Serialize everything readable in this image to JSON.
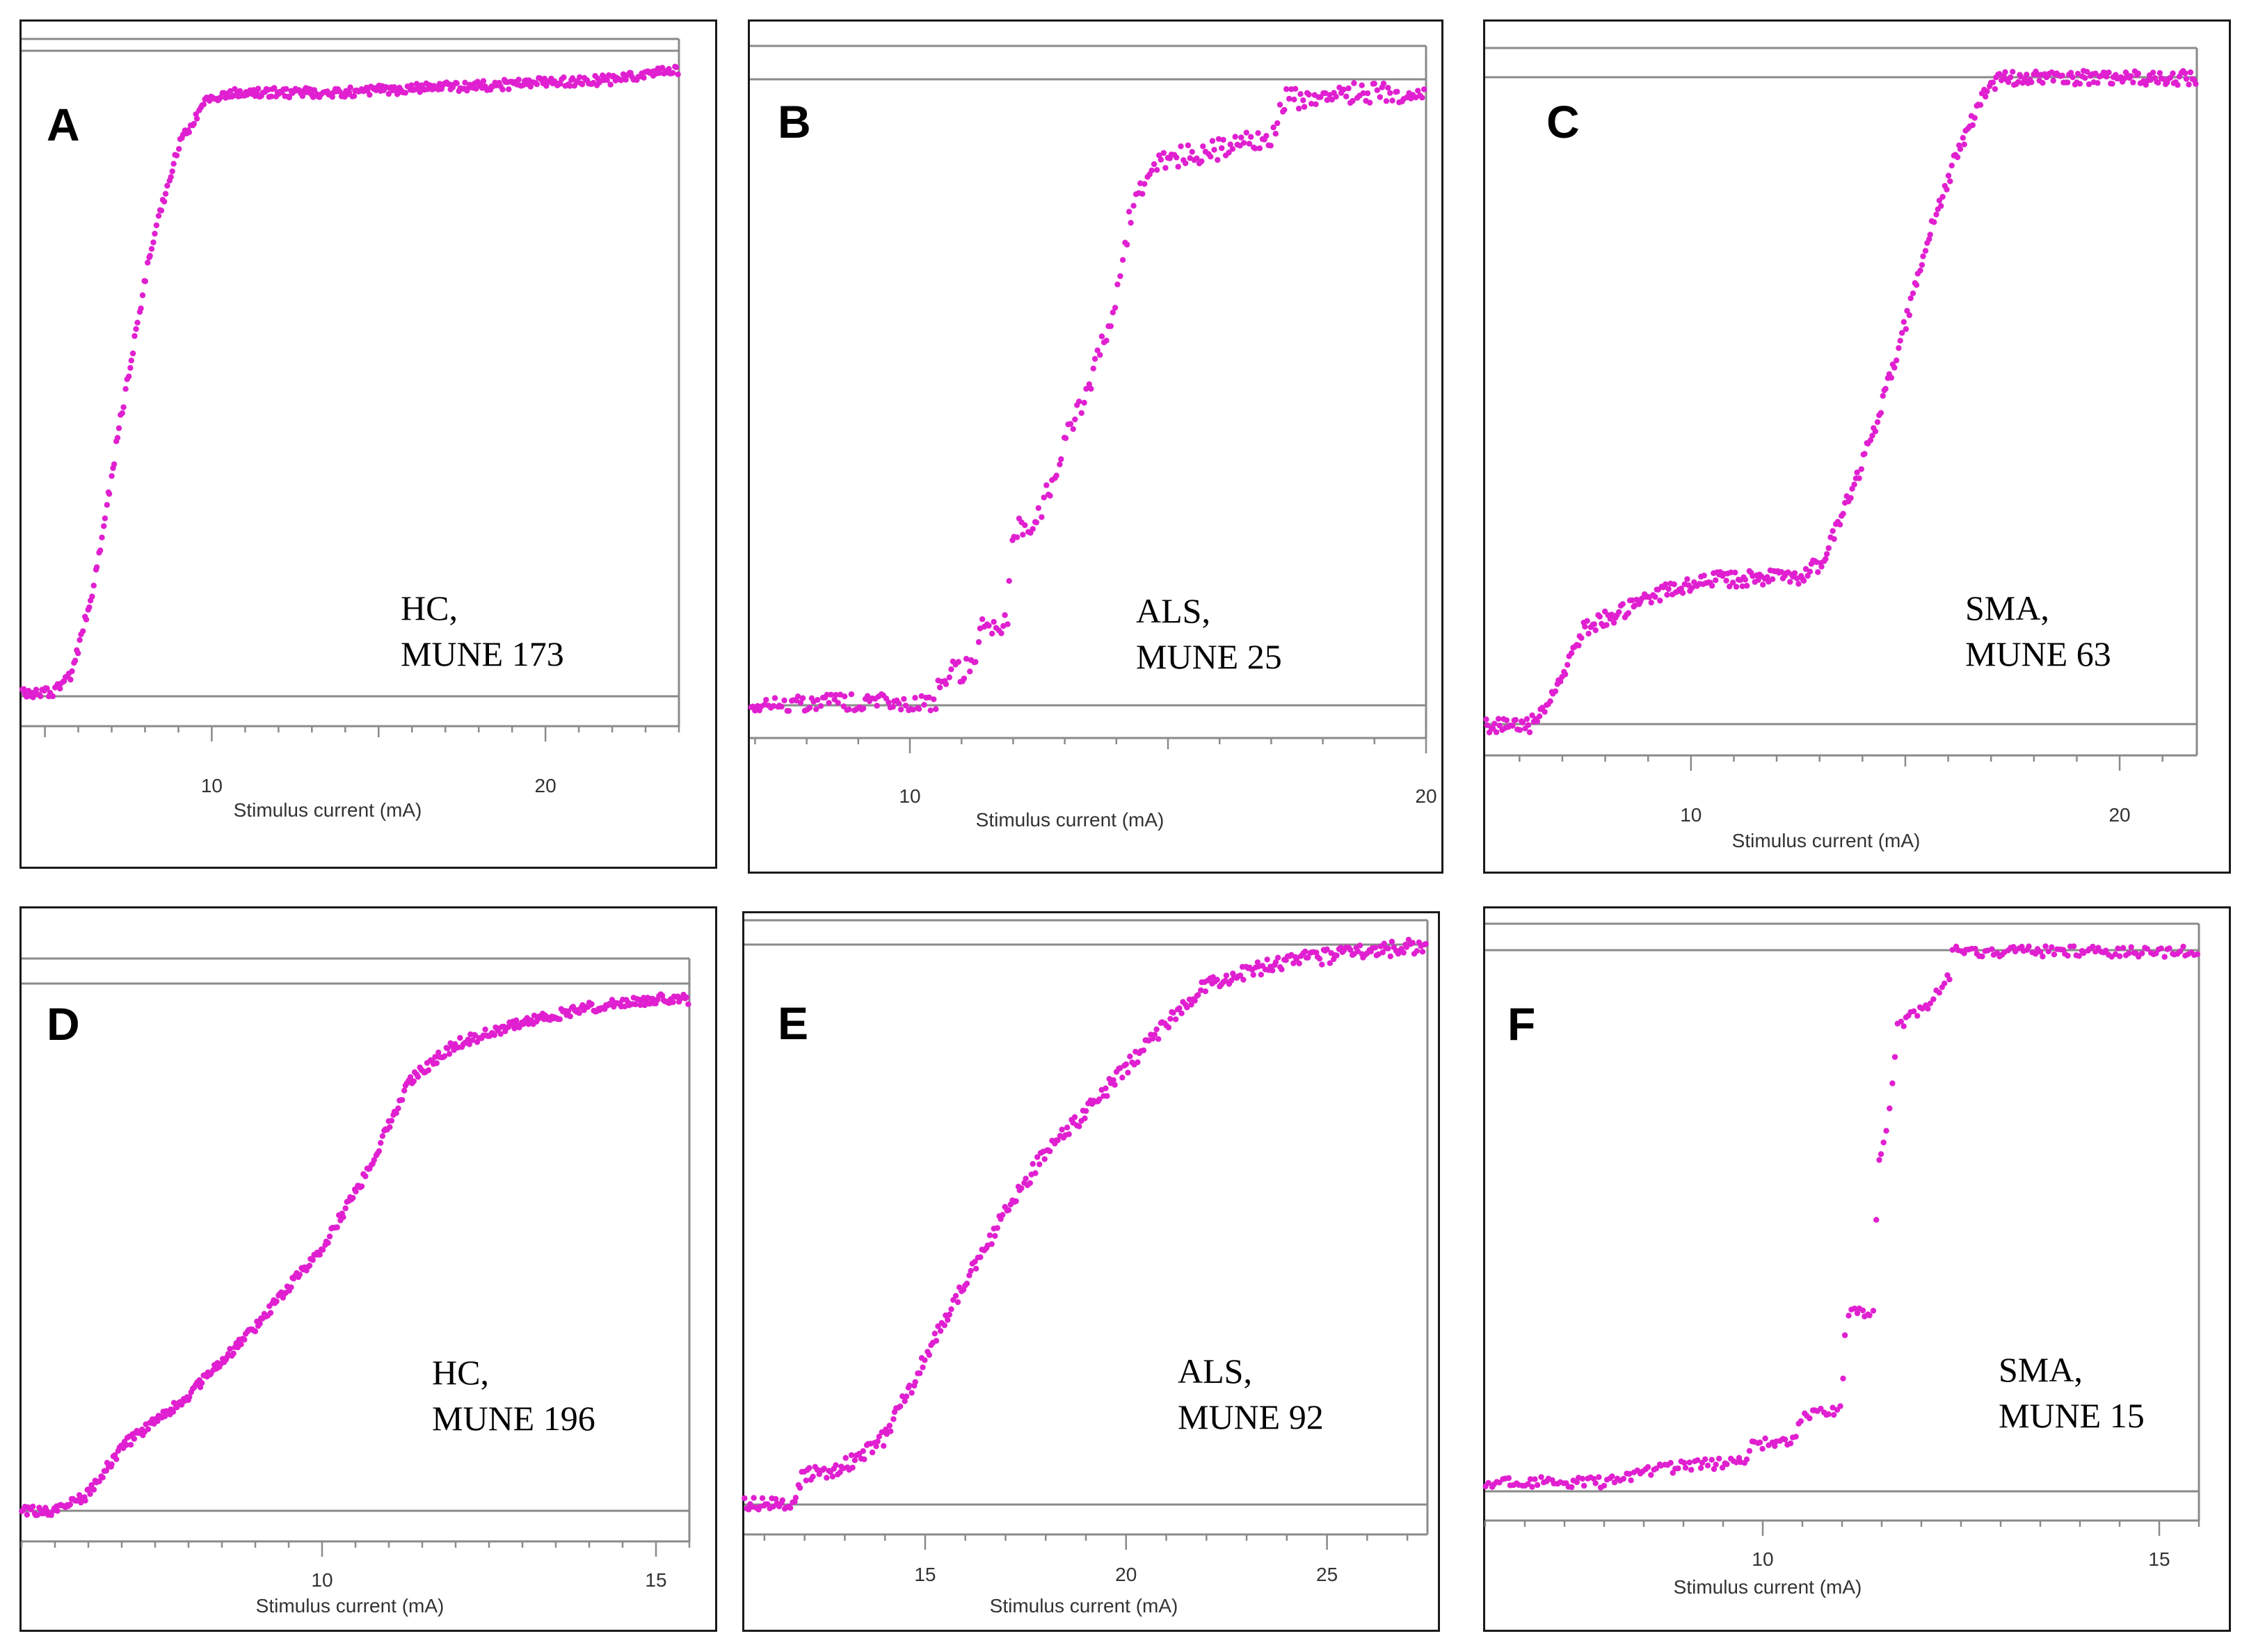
{
  "colors": {
    "marker": "#e020d0",
    "frame": "#8a8a8a",
    "border": "#1a1a1a"
  },
  "chart_data": [
    {
      "panel": "A",
      "type": "scatter",
      "xlabel": "Stimulus current (mA)",
      "annotation": [
        "HC,",
        "MUNE 173"
      ],
      "xlim": [
        4.3,
        24
      ],
      "ticks": [
        10,
        20
      ],
      "minor_step": 1,
      "profile": [
        [
          4.3,
          0
        ],
        [
          5.2,
          0.0
        ],
        [
          5.8,
          0.03
        ],
        [
          6.5,
          0.18
        ],
        [
          7.3,
          0.45
        ],
        [
          8.2,
          0.72
        ],
        [
          9.0,
          0.88
        ],
        [
          9.8,
          0.95
        ],
        [
          10.5,
          0.963
        ],
        [
          14,
          0.965
        ],
        [
          18,
          0.975
        ],
        [
          22,
          0.985
        ],
        [
          24,
          1.0
        ]
      ],
      "noise": 0.008,
      "n_points": 420
    },
    {
      "panel": "B",
      "type": "scatter",
      "xlabel": "Stimulus current (mA)",
      "annotation": [
        "ALS,",
        "MUNE 25"
      ],
      "xlim": [
        6.9,
        20
      ],
      "ticks": [
        10,
        20
      ],
      "minor_step": 1,
      "profile": [
        [
          6.9,
          0
        ],
        [
          10.5,
          0
        ],
        [
          10.6,
          0.05
        ],
        [
          11.3,
          0.06
        ],
        [
          11.35,
          0.12
        ],
        [
          11.9,
          0.13
        ],
        [
          11.95,
          0.28
        ],
        [
          12.5,
          0.3
        ],
        [
          13.0,
          0.42
        ],
        [
          13.5,
          0.52
        ],
        [
          14.0,
          0.65
        ],
        [
          14.3,
          0.8
        ],
        [
          14.8,
          0.87
        ],
        [
          16.0,
          0.89
        ],
        [
          16.3,
          0.9
        ],
        [
          17.0,
          0.91
        ],
        [
          17.3,
          0.97
        ],
        [
          18.5,
          0.98
        ],
        [
          20,
          0.98
        ]
      ],
      "noise": 0.018,
      "n_points": 300
    },
    {
      "panel": "C",
      "type": "scatter",
      "xlabel": "Stimulus current (mA)",
      "annotation": [
        "SMA,",
        "MUNE 63"
      ],
      "xlim": [
        5.2,
        21.8
      ],
      "ticks": [
        10,
        20
      ],
      "minor_step": 1,
      "profile": [
        [
          5.2,
          0
        ],
        [
          6.2,
          0.0
        ],
        [
          6.6,
          0.02
        ],
        [
          7.0,
          0.08
        ],
        [
          7.5,
          0.15
        ],
        [
          8.5,
          0.18
        ],
        [
          9.5,
          0.21
        ],
        [
          10.5,
          0.225
        ],
        [
          12.5,
          0.23
        ],
        [
          13.0,
          0.25
        ],
        [
          13.5,
          0.32
        ],
        [
          14.3,
          0.46
        ],
        [
          15.0,
          0.62
        ],
        [
          15.6,
          0.77
        ],
        [
          16.2,
          0.88
        ],
        [
          16.8,
          0.97
        ],
        [
          17.2,
          1.0
        ],
        [
          21.8,
          1.0
        ]
      ],
      "noise": 0.012,
      "n_points": 400
    },
    {
      "panel": "D",
      "type": "scatter",
      "xlabel": "Stimulus current (mA)",
      "annotation": [
        "HC,",
        "MUNE 196"
      ],
      "xlim": [
        5.5,
        15.5
      ],
      "ticks": [
        10,
        15
      ],
      "minor_step": 0.5,
      "profile": [
        [
          5.5,
          0
        ],
        [
          6.0,
          0.0
        ],
        [
          6.5,
          0.03
        ],
        [
          7.0,
          0.12
        ],
        [
          8.0,
          0.22
        ],
        [
          9.0,
          0.35
        ],
        [
          10.0,
          0.5
        ],
        [
          10.7,
          0.65
        ],
        [
          11.3,
          0.82
        ],
        [
          12.0,
          0.89
        ],
        [
          13.0,
          0.93
        ],
        [
          14.0,
          0.96
        ],
        [
          15.0,
          0.975
        ],
        [
          15.5,
          0.975
        ]
      ],
      "noise": 0.01,
      "n_points": 430
    },
    {
      "panel": "E",
      "type": "scatter",
      "xlabel": "Stimulus current (mA)",
      "annotation": [
        "ALS,",
        "MUNE 92"
      ],
      "xlim": [
        10.5,
        27.5
      ],
      "ticks": [
        15,
        20,
        25
      ],
      "minor_step": 1,
      "profile": [
        [
          10.5,
          0
        ],
        [
          11.8,
          0.0
        ],
        [
          11.9,
          0.05
        ],
        [
          12.5,
          0.06
        ],
        [
          13.0,
          0.07
        ],
        [
          14.0,
          0.12
        ],
        [
          15.0,
          0.26
        ],
        [
          16.0,
          0.4
        ],
        [
          17.0,
          0.52
        ],
        [
          18.0,
          0.63
        ],
        [
          19.0,
          0.7
        ],
        [
          20.0,
          0.78
        ],
        [
          21.0,
          0.86
        ],
        [
          22.0,
          0.93
        ],
        [
          24.0,
          0.97
        ],
        [
          27.5,
          1.0
        ]
      ],
      "noise": 0.014,
      "n_points": 360
    },
    {
      "panel": "F",
      "type": "scatter",
      "xlabel": "Stimulus current (mA)",
      "annotation": [
        "SMA,",
        "MUNE 15"
      ],
      "xlim": [
        6.5,
        15.5
      ],
      "ticks": [
        10,
        15
      ],
      "minor_step": 0.5,
      "profile": [
        [
          6.5,
          0
        ],
        [
          8.0,
          0.0
        ],
        [
          8.5,
          0.02
        ],
        [
          9.0,
          0.03
        ],
        [
          9.8,
          0.04
        ],
        [
          9.85,
          0.07
        ],
        [
          10.4,
          0.08
        ],
        [
          10.45,
          0.12
        ],
        [
          11.0,
          0.14
        ],
        [
          11.05,
          0.32
        ],
        [
          11.4,
          0.32
        ],
        [
          11.45,
          0.6
        ],
        [
          11.6,
          0.7
        ],
        [
          11.7,
          0.86
        ],
        [
          12.1,
          0.9
        ],
        [
          12.35,
          0.95
        ],
        [
          12.4,
          1.0
        ],
        [
          15.5,
          1.0
        ]
      ],
      "noise": 0.01,
      "n_points": 260
    }
  ]
}
